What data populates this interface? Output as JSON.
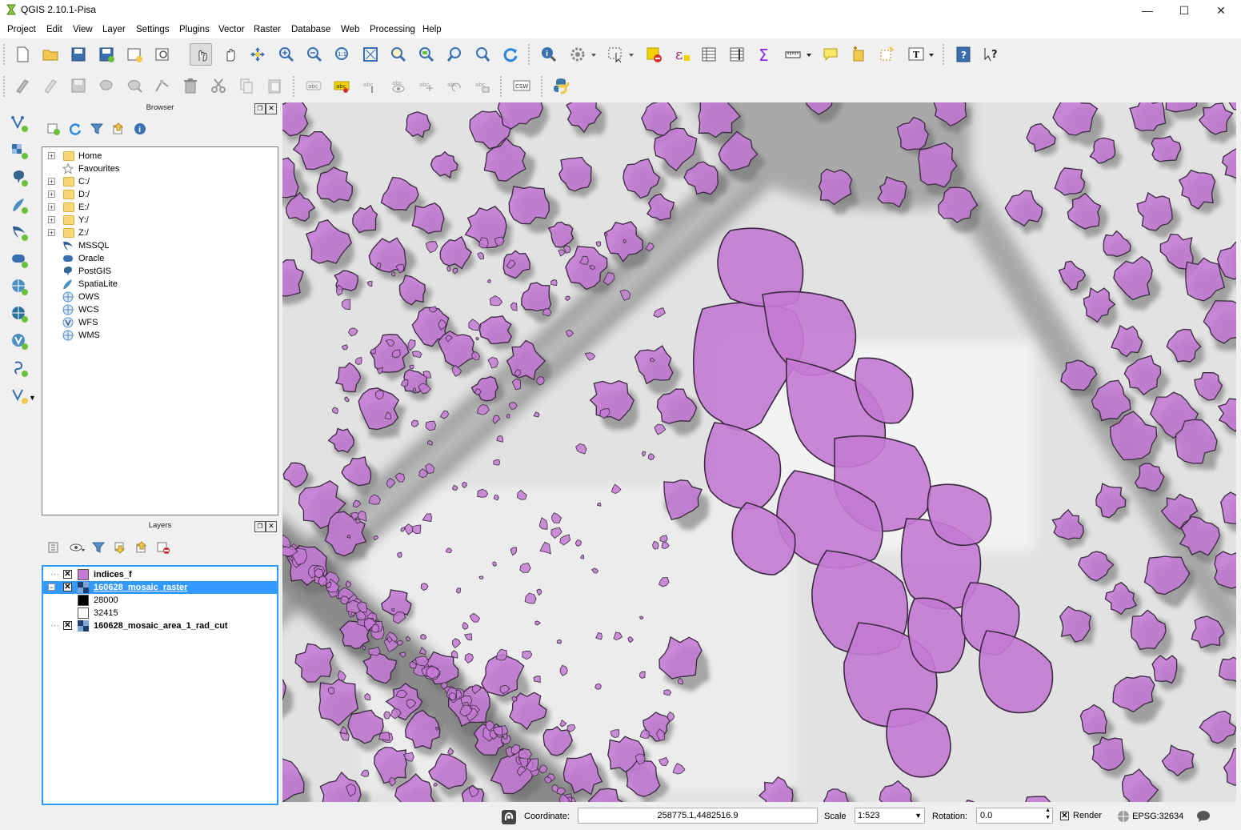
{
  "window": {
    "title": "QGIS 2.10.1-Pisa"
  },
  "menubar": [
    "Project",
    "Edit",
    "View",
    "Layer",
    "Settings",
    "Plugins",
    "Vector",
    "Raster",
    "Database",
    "Web",
    "Processing",
    "Help"
  ],
  "browser": {
    "title": "Browser",
    "items": [
      {
        "label": "Home",
        "icon": "folder-icon",
        "expandable": true
      },
      {
        "label": "Favourites",
        "icon": "star-icon",
        "expandable": false
      },
      {
        "label": "C:/",
        "icon": "folder-icon",
        "expandable": true
      },
      {
        "label": "D:/",
        "icon": "folder-icon",
        "expandable": true
      },
      {
        "label": "E:/",
        "icon": "folder-icon",
        "expandable": true
      },
      {
        "label": "Y:/",
        "icon": "folder-icon",
        "expandable": true
      },
      {
        "label": "Z:/",
        "icon": "folder-icon",
        "expandable": true
      },
      {
        "label": "MSSQL",
        "icon": "mssql-icon",
        "expandable": false
      },
      {
        "label": "Oracle",
        "icon": "oracle-icon",
        "expandable": false
      },
      {
        "label": "PostGIS",
        "icon": "postgis-icon",
        "expandable": false
      },
      {
        "label": "SpatiaLite",
        "icon": "spatialite-icon",
        "expandable": false
      },
      {
        "label": "OWS",
        "icon": "globe-icon",
        "expandable": false
      },
      {
        "label": "WCS",
        "icon": "globe-icon",
        "expandable": false
      },
      {
        "label": "WFS",
        "icon": "wfs-icon",
        "expandable": false
      },
      {
        "label": "WMS",
        "icon": "globe-icon",
        "expandable": false
      }
    ]
  },
  "layers": {
    "title": "Layers",
    "items": [
      {
        "label": "indices_f",
        "checked": true,
        "swatch": "#c57ad6"
      },
      {
        "label": "160628_mosaic_raster",
        "checked": true,
        "selected": true,
        "expanded": true
      },
      {
        "label": "28000",
        "legend": "#000000"
      },
      {
        "label": "32415",
        "legend": "#ffffff"
      },
      {
        "label": "160628_mosaic_area_1_rad_cut",
        "checked": true
      }
    ]
  },
  "statusbar": {
    "coordinate_label": "Coordinate:",
    "coordinate_value": "258775.1,4482516.9",
    "scale_label": "Scale",
    "scale_value": "1:523",
    "rotation_label": "Rotation:",
    "rotation_value": "0.0",
    "render_label": "Render",
    "crs": "EPSG:32634"
  },
  "colors": {
    "polygon_fill": "#c478d4",
    "selection": "#3399ff"
  }
}
